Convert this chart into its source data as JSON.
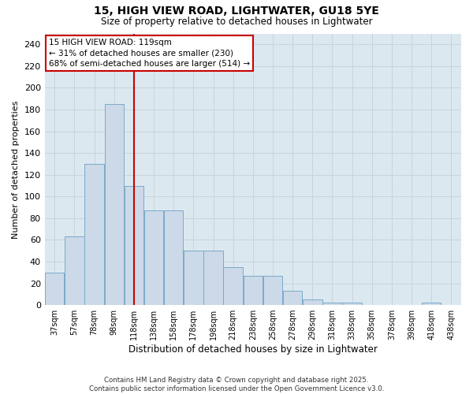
{
  "title": "15, HIGH VIEW ROAD, LIGHTWATER, GU18 5YE",
  "subtitle": "Size of property relative to detached houses in Lightwater",
  "xlabel": "Distribution of detached houses by size in Lightwater",
  "ylabel": "Number of detached properties",
  "footer_line1": "Contains HM Land Registry data © Crown copyright and database right 2025.",
  "footer_line2": "Contains public sector information licensed under the Open Government Licence v3.0.",
  "bar_color": "#ccd9e8",
  "bar_edge_color": "#7aaac8",
  "grid_color": "#c8d4dc",
  "background_color": "#ffffff",
  "plot_bg_color": "#dce8f0",
  "bin_labels": [
    "37sqm",
    "57sqm",
    "78sqm",
    "98sqm",
    "118sqm",
    "138sqm",
    "158sqm",
    "178sqm",
    "198sqm",
    "218sqm",
    "238sqm",
    "258sqm",
    "278sqm",
    "298sqm",
    "318sqm",
    "338sqm",
    "358sqm",
    "378sqm",
    "398sqm",
    "418sqm",
    "438sqm"
  ],
  "bar_heights": [
    30,
    63,
    130,
    185,
    110,
    87,
    87,
    50,
    50,
    35,
    27,
    27,
    13,
    5,
    2,
    2,
    0,
    0,
    0,
    2,
    0
  ],
  "property_line_x": 4,
  "bin_width": 1,
  "ylim": [
    0,
    250
  ],
  "yticks": [
    0,
    20,
    40,
    60,
    80,
    100,
    120,
    140,
    160,
    180,
    200,
    220,
    240
  ],
  "annotation_title": "15 HIGH VIEW ROAD: 119sqm",
  "annotation_line1": "← 31% of detached houses are smaller (230)",
  "annotation_line2": "68% of semi-detached houses are larger (514) →",
  "annotation_box_color": "#ffffff",
  "annotation_box_edge_color": "#cc0000",
  "vline_color": "#cc0000",
  "title_fontsize": 10,
  "subtitle_fontsize": 8.5
}
